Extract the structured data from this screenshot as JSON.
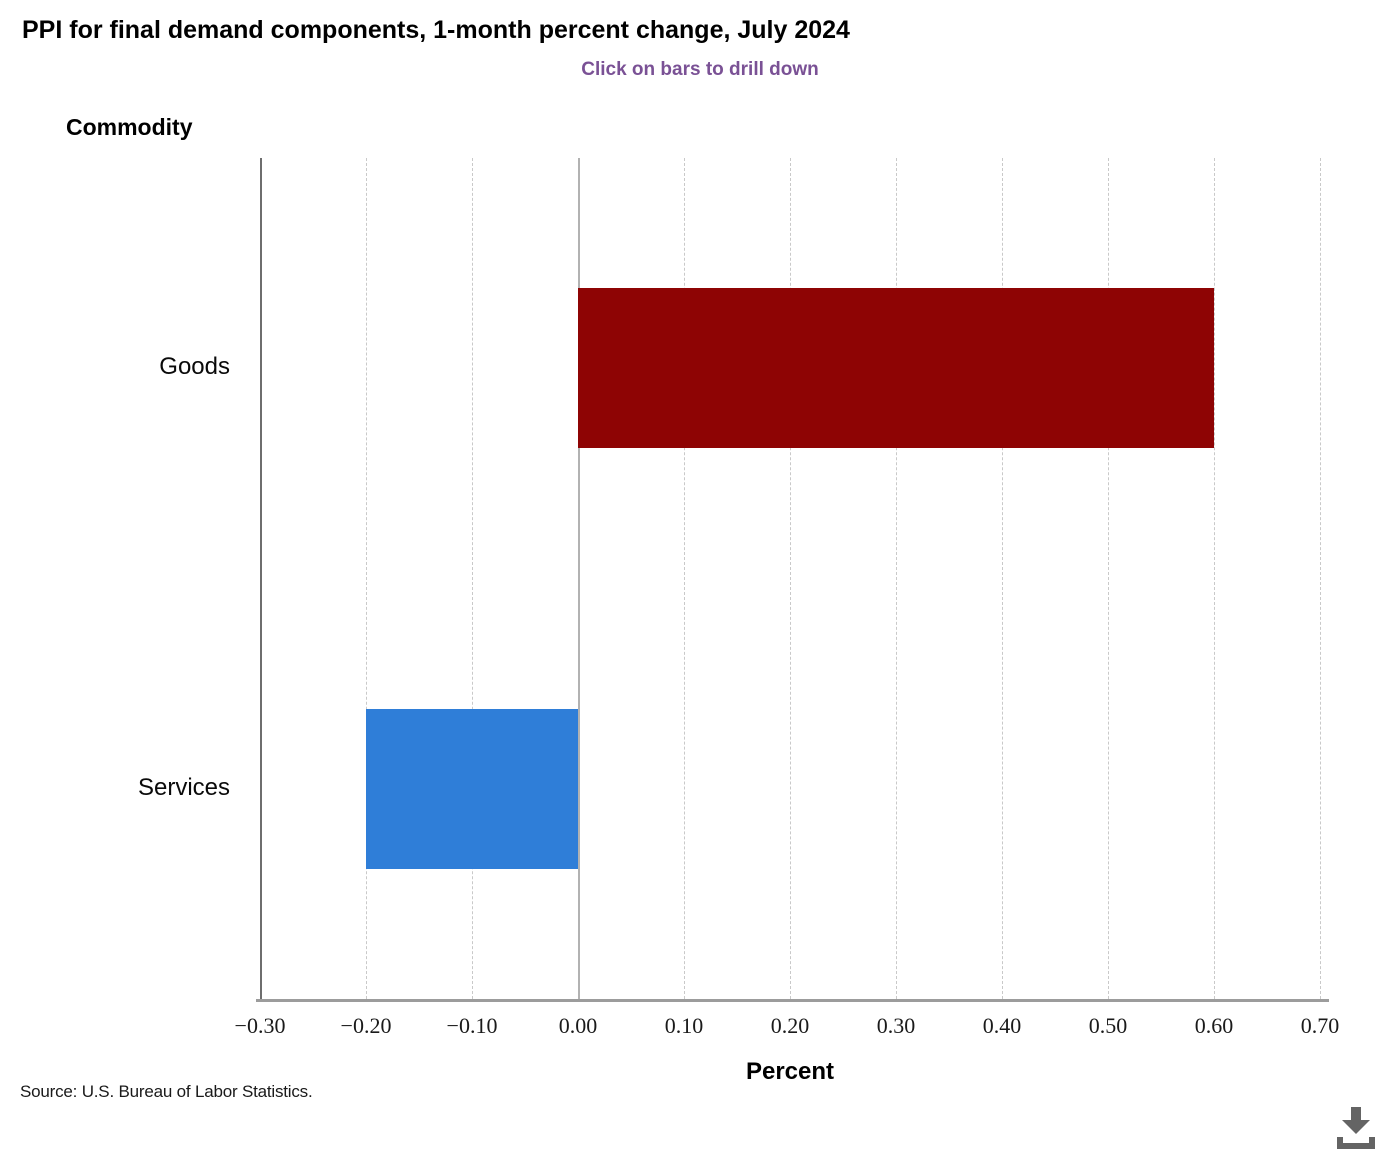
{
  "header": {
    "title": "PPI for final demand components, 1-month percent change, July 2024",
    "subtitle": "Click on bars to drill down"
  },
  "chart_data": {
    "type": "bar",
    "orientation": "horizontal",
    "title": "PPI for final demand components, 1-month percent change, July 2024",
    "subtitle": "Click on bars to drill down",
    "categories": [
      "Goods",
      "Services"
    ],
    "values": [
      0.6,
      -0.2
    ],
    "bar_colors": [
      "#8e0404",
      "#2f7ed8"
    ],
    "xlabel": "Percent",
    "ylabel": "Commodity",
    "xlim": [
      -0.3,
      0.7
    ],
    "xticks": [
      -0.3,
      -0.2,
      -0.1,
      0,
      0.1,
      0.2,
      0.3,
      0.4,
      0.5,
      0.6,
      0.7
    ],
    "xtick_labels": [
      "−0.30",
      "−0.20",
      "−0.10",
      "0.00",
      "0.10",
      "0.20",
      "0.30",
      "0.40",
      "0.50",
      "0.60",
      "0.70"
    ],
    "grid": "vertical-dashed",
    "zero_line": true,
    "legend": "none"
  },
  "colors": {
    "subtitle_purple": "#7a5195",
    "goods_bar": "#8e0404",
    "services_bar": "#2f7ed8",
    "axis_gray": "#9c9c9c",
    "icon_gray": "#646464"
  },
  "footer": {
    "source": "Source: U.S. Bureau of Labor Statistics.",
    "download_icon": "download-icon"
  }
}
